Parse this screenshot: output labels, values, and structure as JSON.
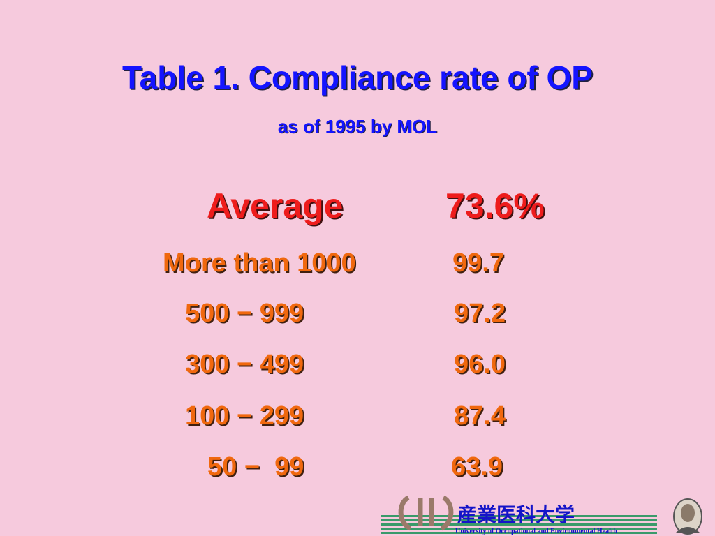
{
  "header": {
    "title": "Table 1. Compliance rate of OP",
    "subtitle": "as of 1995 by MOL"
  },
  "summary": {
    "label": "Average",
    "value": "73.6%"
  },
  "table": {
    "rows": [
      [
        "More than 1000",
        "99.7"
      ],
      [
        "500 − 999",
        "97.2"
      ],
      [
        "300 − 499",
        "96.0"
      ],
      [
        "100 − 299",
        "87.4"
      ],
      [
        "50 −  99",
        "63.9"
      ]
    ]
  },
  "footer": {
    "name_ja": "産業医科大学",
    "name_en": "University of Occupational and Environmental Health"
  }
}
